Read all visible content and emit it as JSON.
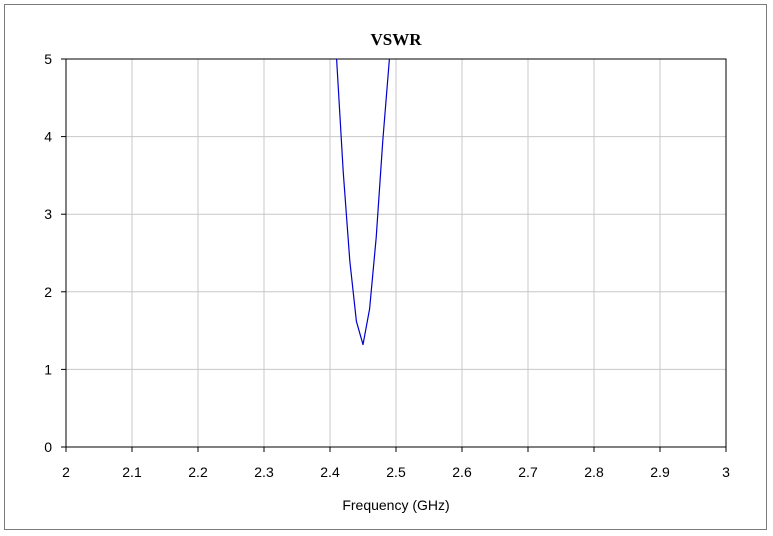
{
  "chart_data": {
    "type": "line",
    "title": "VSWR",
    "xlabel": "Frequency (GHz)",
    "ylabel": "",
    "xlim": [
      2,
      3
    ],
    "ylim": [
      0,
      5
    ],
    "xticks": [
      "2",
      "2.1",
      "2.2",
      "2.3",
      "2.4",
      "2.5",
      "2.6",
      "2.7",
      "2.8",
      "2.9",
      "3"
    ],
    "yticks": [
      "0",
      "1",
      "2",
      "3",
      "4",
      "5"
    ],
    "grid": true,
    "legend": "none",
    "series": [
      {
        "color": "#0000cc",
        "x": [
          2.41,
          2.42,
          2.43,
          2.44,
          2.45,
          2.46,
          2.47,
          2.48,
          2.49
        ],
        "y": [
          5.0,
          3.55,
          2.4,
          1.62,
          1.32,
          1.78,
          2.7,
          3.95,
          5.0
        ]
      }
    ]
  }
}
